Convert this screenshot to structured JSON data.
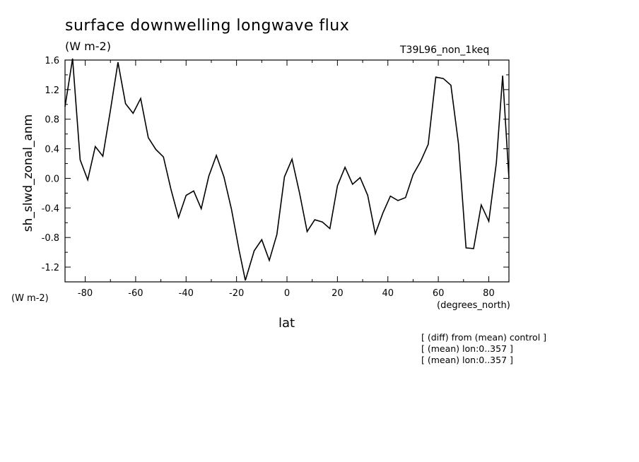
{
  "header": {
    "title": "surface downwelling longwave flux",
    "units": "(W m-2)",
    "run_name": "T39L96_non_1keq"
  },
  "axes": {
    "y_units": "(W m-2)",
    "x_units": "(degrees_north)",
    "x_label": "lat",
    "y_label": "sh_slwd_zonal_anm"
  },
  "notes": [
    "[ (diff) from (mean) control ]",
    "[ (mean) lon:0..357 ]",
    "[ (mean) lon:0..357 ]"
  ],
  "chart_data": {
    "type": "line",
    "title": "surface downwelling longwave flux",
    "xlabel": "lat",
    "ylabel": "sh_slwd_zonal_anm",
    "xlim": [
      -88,
      88
    ],
    "ylim": [
      -1.4,
      1.6
    ],
    "x_ticks": [
      -80,
      -60,
      -40,
      -20,
      0,
      20,
      40,
      60,
      80
    ],
    "x_tick_labels": [
      "-80",
      "-60",
      "-40",
      "-20",
      "0",
      "20",
      "40",
      "60",
      "80"
    ],
    "y_ticks": [
      -1.2,
      -0.8,
      -0.4,
      0.0,
      0.4,
      0.8,
      1.2,
      1.6
    ],
    "y_tick_labels": [
      "-1.2",
      "-0.8",
      "-0.4",
      "0.0",
      "0.4",
      "0.8",
      "1.2",
      "1.6"
    ],
    "grid": false,
    "series": [
      {
        "x": [
          -88,
          -85,
          -82,
          -79,
          -76,
          -73,
          -70,
          -67,
          -64,
          -61,
          -58,
          -55,
          -52,
          -49,
          -46,
          -43,
          -40,
          -37,
          -34,
          -31,
          -28,
          -25,
          -22,
          -19,
          -16.5,
          -13,
          -10,
          -7,
          -4,
          -1,
          2,
          5,
          8,
          11,
          14,
          17,
          20,
          23,
          26,
          29,
          32,
          35,
          38,
          41,
          44,
          47,
          50,
          53,
          56,
          59,
          62,
          65,
          68,
          71,
          74,
          77,
          80,
          83,
          85.5,
          88
        ],
        "y": [
          0.97,
          1.62,
          0.25,
          -0.02,
          0.43,
          0.3,
          0.92,
          1.57,
          1.01,
          0.88,
          1.08,
          0.55,
          0.39,
          0.29,
          -0.15,
          -0.53,
          -0.23,
          -0.17,
          -0.41,
          0.03,
          0.31,
          0.02,
          -0.42,
          -0.97,
          -1.38,
          -0.98,
          -0.83,
          -1.11,
          -0.76,
          0.02,
          0.26,
          -0.2,
          -0.72,
          -0.56,
          -0.59,
          -0.68,
          -0.1,
          0.15,
          -0.08,
          0.01,
          -0.23,
          -0.75,
          -0.47,
          -0.24,
          -0.3,
          -0.26,
          0.05,
          0.23,
          0.46,
          1.37,
          1.35,
          1.26,
          0.47,
          -0.94,
          -0.95,
          -0.36,
          -0.58,
          0.21,
          1.39,
          0.0
        ]
      }
    ]
  }
}
